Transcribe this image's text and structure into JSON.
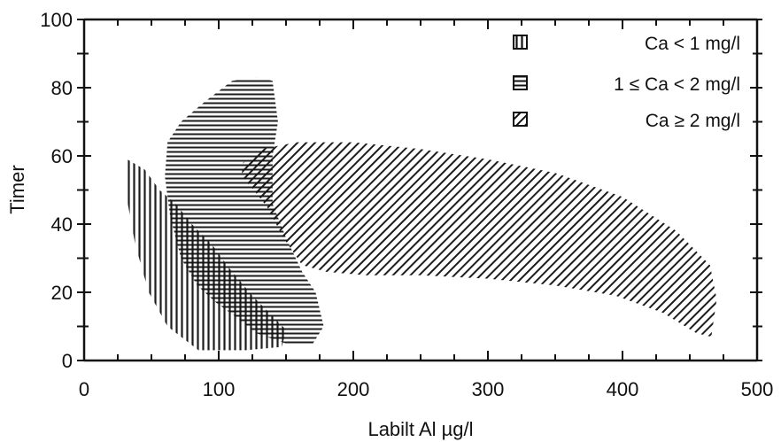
{
  "chart_data": {
    "type": "area",
    "title": "",
    "xlabel": "Labilt Al µg/l",
    "ylabel": "Timer",
    "xlim": [
      0,
      500
    ],
    "ylim": [
      0,
      100
    ],
    "x_ticks": [
      "0",
      "100",
      "200",
      "300",
      "400",
      "500"
    ],
    "y_ticks": [
      "0",
      "20",
      "40",
      "60",
      "80",
      "100"
    ],
    "grid": false,
    "legend_position": "top-right",
    "series": [
      {
        "name": "Ca < 1 mg/l",
        "hatch": "vertical",
        "points": [
          [
            32,
            59
          ],
          [
            45,
            56
          ],
          [
            56,
            50
          ],
          [
            68,
            46
          ],
          [
            80,
            40
          ],
          [
            95,
            34
          ],
          [
            108,
            27
          ],
          [
            125,
            19
          ],
          [
            140,
            13
          ],
          [
            150,
            9
          ],
          [
            147,
            4
          ],
          [
            120,
            3
          ],
          [
            85,
            3
          ],
          [
            62,
            10
          ],
          [
            48,
            20
          ],
          [
            38,
            34
          ],
          [
            32,
            47
          ],
          [
            32,
            59
          ]
        ]
      },
      {
        "name": "1 ≤ Ca < 2 mg/l",
        "hatch": "horizontal",
        "points": [
          [
            110,
            82
          ],
          [
            128,
            83
          ],
          [
            140,
            82
          ],
          [
            144,
            70
          ],
          [
            140,
            60
          ],
          [
            140,
            46
          ],
          [
            150,
            36
          ],
          [
            162,
            26
          ],
          [
            172,
            20
          ],
          [
            178,
            10
          ],
          [
            170,
            5
          ],
          [
            150,
            5
          ],
          [
            128,
            8
          ],
          [
            112,
            13
          ],
          [
            98,
            17
          ],
          [
            84,
            22
          ],
          [
            72,
            30
          ],
          [
            64,
            42
          ],
          [
            60,
            54
          ],
          [
            62,
            64
          ],
          [
            72,
            70
          ],
          [
            90,
            76
          ],
          [
            110,
            82
          ]
        ]
      },
      {
        "name": "Ca ≥ 2 mg/l",
        "hatch": "diagonal",
        "points": [
          [
            118,
            58
          ],
          [
            132,
            62
          ],
          [
            158,
            64
          ],
          [
            200,
            64
          ],
          [
            250,
            62
          ],
          [
            300,
            59
          ],
          [
            350,
            55
          ],
          [
            400,
            48
          ],
          [
            440,
            38
          ],
          [
            465,
            28
          ],
          [
            470,
            18
          ],
          [
            466,
            7
          ],
          [
            455,
            8
          ],
          [
            430,
            14
          ],
          [
            395,
            19
          ],
          [
            350,
            22
          ],
          [
            300,
            24
          ],
          [
            250,
            25
          ],
          [
            210,
            25
          ],
          [
            180,
            26
          ],
          [
            162,
            28
          ],
          [
            148,
            36
          ],
          [
            136,
            45
          ],
          [
            126,
            50
          ],
          [
            117,
            54
          ],
          [
            118,
            58
          ]
        ]
      }
    ]
  },
  "legend": {
    "items": [
      {
        "label": "Ca < 1 mg/l",
        "icon": "vertical-hatch-swatch-icon"
      },
      {
        "label": "1 ≤ Ca < 2 mg/l",
        "icon": "horizontal-hatch-swatch-icon"
      },
      {
        "label": "Ca ≥ 2 mg/l",
        "icon": "diagonal-hatch-swatch-icon"
      }
    ]
  },
  "colors": {
    "ink": "#111111",
    "background": "#ffffff"
  }
}
